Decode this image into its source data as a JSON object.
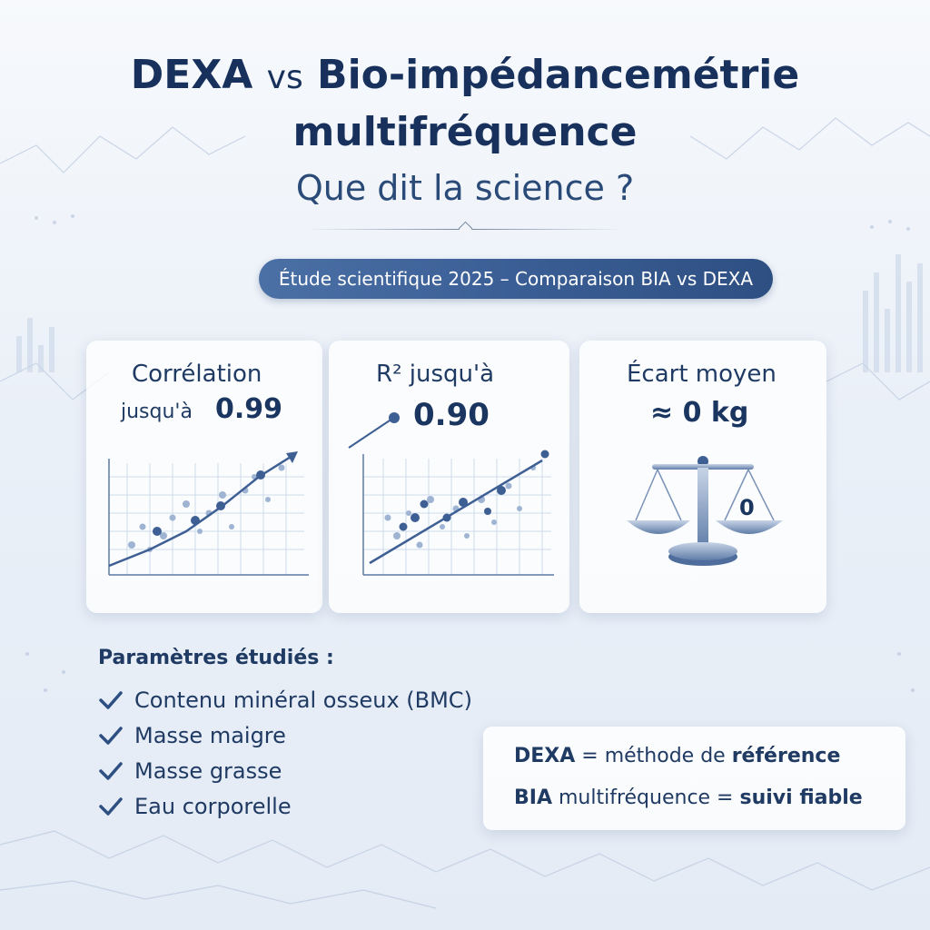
{
  "title": {
    "line1_part1": "DEXA",
    "line1_vs": "vs",
    "line1_part2": "Bio-impédancemétrie",
    "line2": "multifréquence",
    "line3": "Que dit la science ?"
  },
  "badge": "Étude scientifique 2025 – Comparaison BIA vs DEXA",
  "cards": [
    {
      "label_line1": "Corrélation",
      "label_line2": "jusqu'à",
      "value": "0.99",
      "icon": "scatter-chart-icon"
    },
    {
      "label_line1": "R² jusqu'à",
      "value": "0.90",
      "icon": "scatter-chart-icon"
    },
    {
      "label_line1": "Écart moyen",
      "value": "≈ 0 kg",
      "scale_value": "0",
      "icon": "balance-scale-icon"
    }
  ],
  "parameters": {
    "heading": "Paramètres étudiés :",
    "items": [
      "Contenu minéral osseux (BMC)",
      "Masse maigre",
      "Masse grasse",
      "Eau corporelle"
    ],
    "check_icon": "check-icon",
    "check_color": "#2e4f82"
  },
  "summary": {
    "dexa_label": "DEXA",
    "dexa_eq": "= méthode de",
    "dexa_value": "référence",
    "bia_label": "BIA",
    "bia_eq": "multifréquence =",
    "bia_value": "suivi fiable"
  },
  "colors": {
    "primary": "#1f3a63",
    "badge": "#3a5e95",
    "chart_point": "#3e5f94",
    "chart_point_light": "#9fb4d3"
  }
}
